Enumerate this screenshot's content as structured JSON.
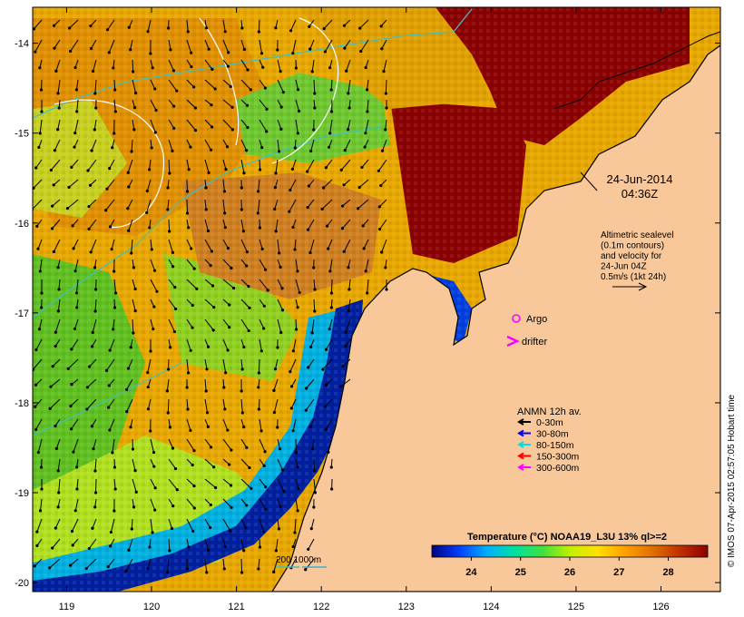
{
  "map": {
    "x_ticks": [
      "119",
      "120",
      "121",
      "122",
      "123",
      "124",
      "125",
      "126"
    ],
    "y_ticks": [
      "-14",
      "-15",
      "-16",
      "-17",
      "-18",
      "-19",
      "-20"
    ],
    "lon_range": [
      118.6,
      126.7
    ],
    "lat_range": [
      -20.1,
      -13.6
    ]
  },
  "datetime": {
    "date": "24-Jun-2014",
    "time": "04:36Z"
  },
  "sealevel_note": {
    "lines": [
      "Altimetric sealevel",
      "(0.1m contours)",
      "and velocity for",
      "24-Jun 04Z",
      "0.5m/s (1kt 24h)"
    ]
  },
  "markers": {
    "argo_label": "Argo",
    "drifter_label": "drifter",
    "argo_color": "#ff00ff",
    "drifter_color": "#ff00ff"
  },
  "anmn_legend": {
    "title": "ANMN 12h av.",
    "items": [
      {
        "label": "0-30m",
        "color": "#000000"
      },
      {
        "label": "30-80m",
        "color": "#0000ff"
      },
      {
        "label": "80-150m",
        "color": "#00e0e0"
      },
      {
        "label": "150-300m",
        "color": "#ff0000"
      },
      {
        "label": "300-600m",
        "color": "#ff00ff"
      }
    ]
  },
  "depth_legend": {
    "label": "200  1000m",
    "colors": [
      "#40c0c0",
      "#3ab0d0"
    ]
  },
  "colorbar": {
    "title": "Temperature (°C) NOAA19_L3U 13% ql>=2",
    "ticks": [
      "24",
      "25",
      "26",
      "27",
      "28"
    ],
    "range": [
      23.2,
      28.8
    ],
    "colors": [
      "#000080",
      "#0040ff",
      "#00b0ff",
      "#00e0a0",
      "#40e040",
      "#c0f000",
      "#ffe000",
      "#ffa000",
      "#e07000",
      "#c03000",
      "#8b0000"
    ]
  },
  "credit": "© IMOS 07-Apr-2015 02:57:05 Hobart time",
  "colors": {
    "land": "#f8c89a",
    "frame": "#000000",
    "contour": "#ffffff",
    "bathy_200": "#40c0c0",
    "bathy_1000": "#3ab0d0"
  }
}
